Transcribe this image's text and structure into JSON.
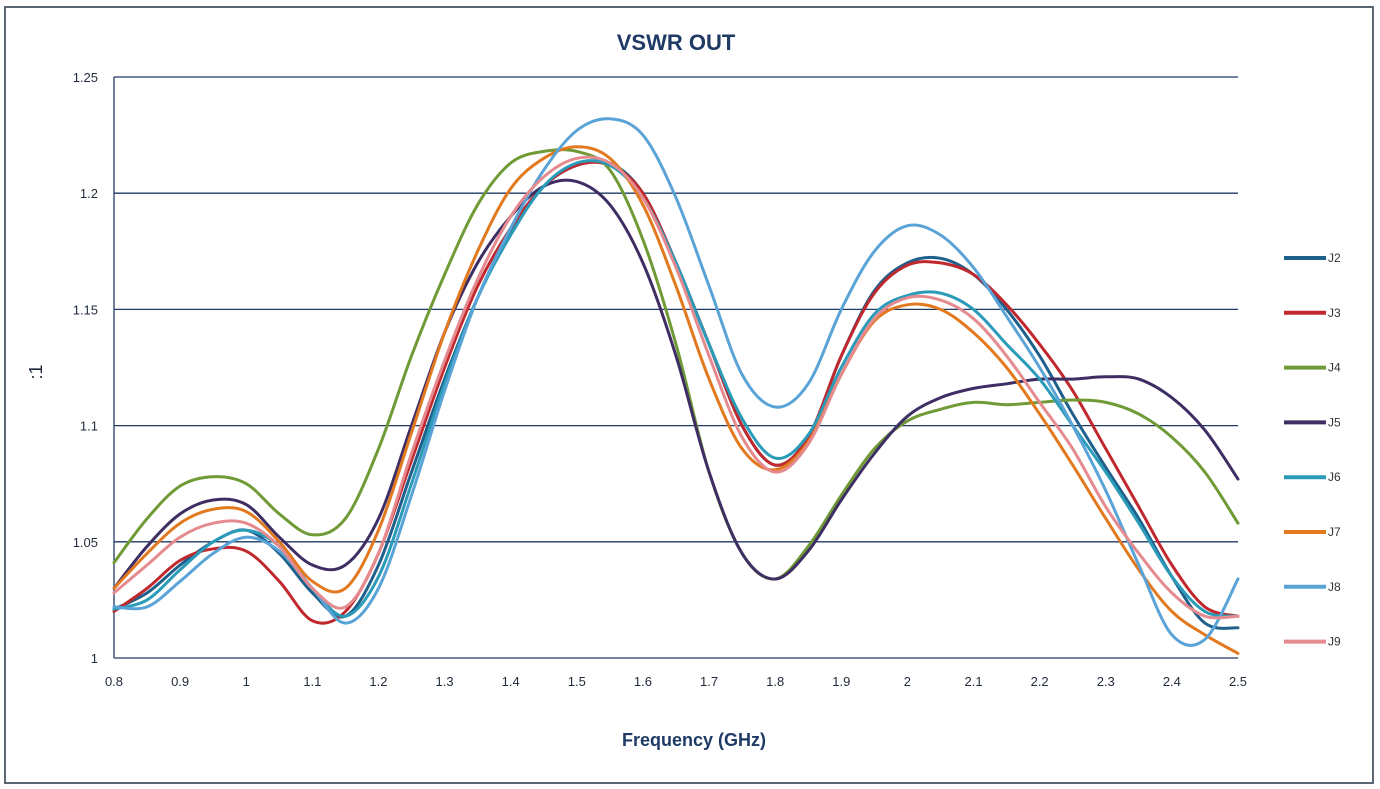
{
  "chart_data": {
    "type": "line",
    "title": "VSWR OUT",
    "xlabel": "Frequency (GHz)",
    "ylabel": ":1",
    "xlim": [
      0.8,
      2.5
    ],
    "ylim": [
      1,
      1.25
    ],
    "x_ticks": [
      "0.8",
      "0.9",
      "1",
      "1.1",
      "1.2",
      "1.3",
      "1.4",
      "1.5",
      "1.6",
      "1.7",
      "1.8",
      "1.9",
      "2",
      "2.1",
      "2.2",
      "2.3",
      "2.4",
      "2.5"
    ],
    "y_ticks": [
      "1",
      "1.05",
      "1.1",
      "1.15",
      "1.2",
      "1.25"
    ],
    "grid": "horizontal",
    "legend_position": "right",
    "x": [
      0.8,
      0.85,
      0.9,
      0.95,
      1.0,
      1.05,
      1.1,
      1.15,
      1.2,
      1.25,
      1.3,
      1.35,
      1.4,
      1.45,
      1.5,
      1.55,
      1.6,
      1.65,
      1.7,
      1.75,
      1.8,
      1.85,
      1.9,
      1.95,
      2.0,
      2.05,
      2.1,
      2.15,
      2.2,
      2.25,
      2.3,
      2.35,
      2.4,
      2.45,
      2.5
    ],
    "series": [
      {
        "name": "J2",
        "color": "#1f5f8b",
        "values": [
          1.021,
          1.028,
          1.04,
          1.05,
          1.055,
          1.045,
          1.028,
          1.018,
          1.04,
          1.08,
          1.12,
          1.155,
          1.183,
          1.203,
          1.212,
          1.213,
          1.2,
          1.17,
          1.135,
          1.1,
          1.083,
          1.095,
          1.13,
          1.158,
          1.17,
          1.172,
          1.165,
          1.15,
          1.13,
          1.105,
          1.082,
          1.06,
          1.035,
          1.015,
          1.013
        ]
      },
      {
        "name": "J3",
        "color": "#c0282e",
        "values": [
          1.02,
          1.03,
          1.042,
          1.047,
          1.046,
          1.033,
          1.016,
          1.02,
          1.045,
          1.085,
          1.125,
          1.16,
          1.185,
          1.203,
          1.212,
          1.212,
          1.2,
          1.17,
          1.135,
          1.1,
          1.083,
          1.095,
          1.13,
          1.157,
          1.169,
          1.17,
          1.165,
          1.152,
          1.135,
          1.115,
          1.09,
          1.065,
          1.04,
          1.022,
          1.018
        ]
      },
      {
        "name": "J4",
        "color": "#6f9a36",
        "values": [
          1.041,
          1.06,
          1.074,
          1.078,
          1.075,
          1.062,
          1.053,
          1.06,
          1.09,
          1.13,
          1.165,
          1.195,
          1.213,
          1.218,
          1.218,
          1.21,
          1.18,
          1.135,
          1.08,
          1.045,
          1.034,
          1.048,
          1.07,
          1.09,
          1.102,
          1.107,
          1.11,
          1.109,
          1.11,
          1.111,
          1.11,
          1.105,
          1.095,
          1.08,
          1.058
        ]
      },
      {
        "name": "J5",
        "color": "#3e2e63",
        "values": [
          1.03,
          1.048,
          1.062,
          1.068,
          1.066,
          1.052,
          1.04,
          1.04,
          1.06,
          1.1,
          1.14,
          1.17,
          1.19,
          1.203,
          1.205,
          1.195,
          1.17,
          1.13,
          1.08,
          1.045,
          1.034,
          1.046,
          1.068,
          1.088,
          1.104,
          1.112,
          1.116,
          1.118,
          1.12,
          1.12,
          1.121,
          1.12,
          1.112,
          1.098,
          1.077
        ]
      },
      {
        "name": "J6",
        "color": "#2a9bb8",
        "values": [
          1.021,
          1.025,
          1.038,
          1.05,
          1.055,
          1.048,
          1.03,
          1.018,
          1.035,
          1.075,
          1.118,
          1.155,
          1.182,
          1.203,
          1.213,
          1.212,
          1.198,
          1.17,
          1.135,
          1.103,
          1.086,
          1.096,
          1.125,
          1.148,
          1.156,
          1.157,
          1.15,
          1.135,
          1.12,
          1.1,
          1.08,
          1.058,
          1.035,
          1.02,
          1.018
        ]
      },
      {
        "name": "J7",
        "color": "#e2791f",
        "values": [
          1.03,
          1.045,
          1.058,
          1.064,
          1.063,
          1.05,
          1.033,
          1.03,
          1.055,
          1.097,
          1.14,
          1.175,
          1.202,
          1.215,
          1.22,
          1.215,
          1.195,
          1.16,
          1.12,
          1.09,
          1.081,
          1.093,
          1.122,
          1.145,
          1.152,
          1.15,
          1.14,
          1.125,
          1.105,
          1.083,
          1.06,
          1.038,
          1.02,
          1.01,
          1.002
        ]
      },
      {
        "name": "J8",
        "color": "#5aa3d6",
        "values": [
          1.022,
          1.022,
          1.033,
          1.045,
          1.052,
          1.046,
          1.03,
          1.015,
          1.03,
          1.07,
          1.115,
          1.155,
          1.185,
          1.21,
          1.227,
          1.232,
          1.225,
          1.198,
          1.16,
          1.122,
          1.108,
          1.118,
          1.15,
          1.175,
          1.186,
          1.182,
          1.168,
          1.147,
          1.125,
          1.1,
          1.072,
          1.04,
          1.01,
          1.008,
          1.034
        ]
      },
      {
        "name": "J9",
        "color": "#e58a8e",
        "values": [
          1.028,
          1.04,
          1.052,
          1.058,
          1.058,
          1.048,
          1.03,
          1.022,
          1.045,
          1.088,
          1.128,
          1.163,
          1.19,
          1.207,
          1.215,
          1.213,
          1.198,
          1.168,
          1.13,
          1.095,
          1.08,
          1.092,
          1.122,
          1.146,
          1.155,
          1.154,
          1.146,
          1.13,
          1.11,
          1.09,
          1.065,
          1.045,
          1.028,
          1.018,
          1.018
        ]
      }
    ]
  }
}
